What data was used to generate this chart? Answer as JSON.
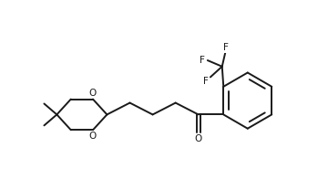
{
  "background_color": "#ffffff",
  "line_color": "#1a1a1a",
  "line_width": 1.4,
  "font_size": 7.5,
  "figsize": [
    3.6,
    2.08
  ],
  "dpi": 100,
  "xlim": [
    -2.8,
    7.2
  ],
  "ylim": [
    2.2,
    9.0
  ]
}
